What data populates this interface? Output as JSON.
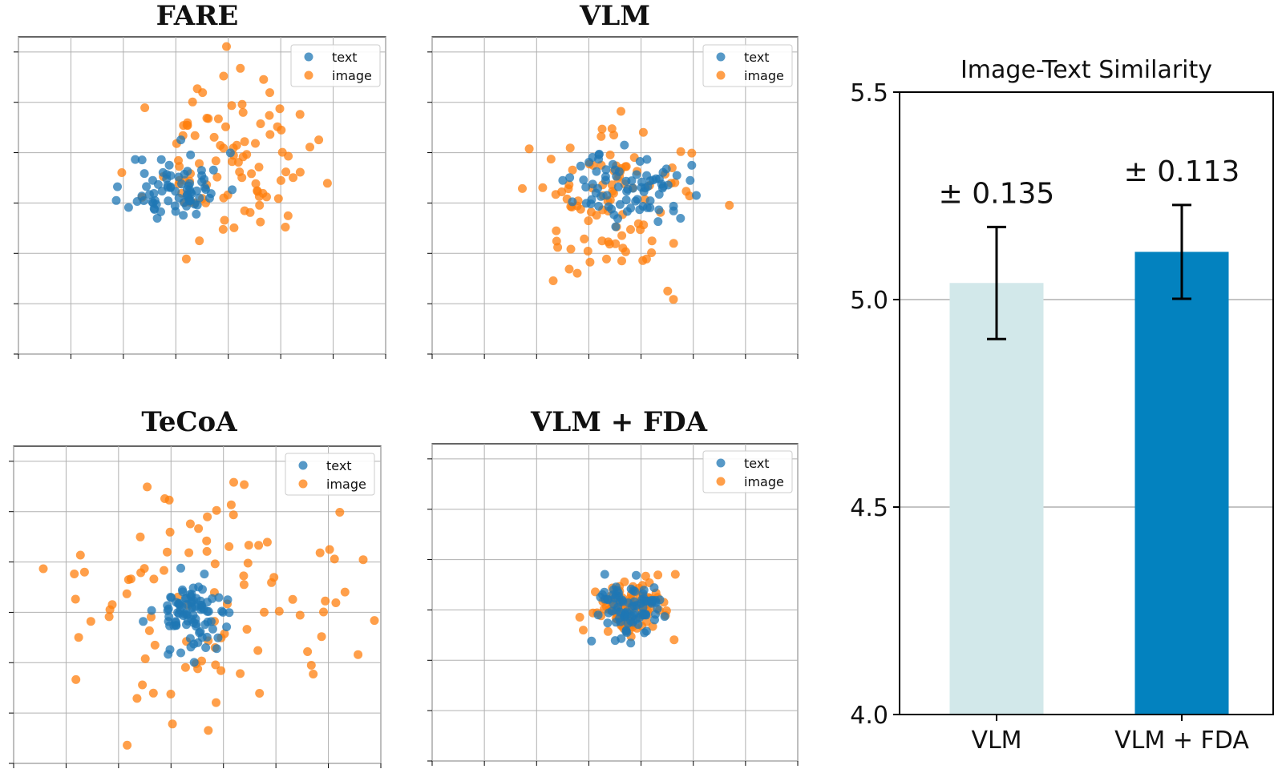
{
  "figure": {
    "scatter_titles": [
      "FARE",
      "VLM",
      "TeCoA",
      "VLM + FDA"
    ],
    "legend_labels": [
      "text",
      "image"
    ],
    "colors": {
      "text": "#1f77b4",
      "image": "#ff7f0e",
      "bar_vlm": "#d2e8ea",
      "bar_vlm_fda": "#0382bf"
    }
  },
  "chart_data": [
    {
      "type": "scatter",
      "title": "FARE",
      "xlim": [
        -4,
        3
      ],
      "ylim": [
        -3,
        3.3
      ],
      "series": [
        {
          "name": "text",
          "color": "#1f77b4",
          "center": [
            -1.0,
            0.3
          ],
          "spread": [
            0.45,
            0.35
          ],
          "count": 75,
          "seed": 11
        },
        {
          "name": "image",
          "color": "#ff7f0e",
          "center": [
            0.0,
            0.8
          ],
          "spread": [
            0.75,
            0.75
          ],
          "count": 95,
          "seed": 23
        }
      ]
    },
    {
      "type": "scatter",
      "title": "VLM",
      "xlim": [
        -4,
        3
      ],
      "ylim": [
        -3,
        3.3
      ],
      "series": [
        {
          "name": "text",
          "color": "#1f77b4",
          "center": [
            -0.2,
            0.3
          ],
          "spread": [
            0.55,
            0.35
          ],
          "count": 80,
          "seed": 37
        },
        {
          "name": "image",
          "color": "#ff7f0e",
          "center": [
            -0.4,
            0.0
          ],
          "spread": [
            0.8,
            0.75
          ],
          "count": 95,
          "seed": 41
        }
      ]
    },
    {
      "type": "scatter",
      "title": "TeCoA",
      "xlim": [
        -4,
        3
      ],
      "ylim": [
        -3,
        3.3
      ],
      "series": [
        {
          "name": "text",
          "color": "#1f77b4",
          "center": [
            -0.6,
            0.0
          ],
          "spread": [
            0.35,
            0.35
          ],
          "count": 90,
          "seed": 53
        },
        {
          "name": "image",
          "color": "#ff7f0e",
          "center": [
            -0.3,
            0.0
          ],
          "spread": [
            1.45,
            1.3
          ],
          "count": 100,
          "seed": 67
        }
      ]
    },
    {
      "type": "scatter",
      "title": "VLM + FDA",
      "xlim": [
        -4,
        3
      ],
      "ylim": [
        -3,
        3.3
      ],
      "series": [
        {
          "name": "text",
          "color": "#1f77b4",
          "center": [
            -0.2,
            0.0
          ],
          "spread": [
            0.35,
            0.3
          ],
          "count": 90,
          "seed": 71
        },
        {
          "name": "image",
          "color": "#ff7f0e",
          "center": [
            -0.2,
            0.0
          ],
          "spread": [
            0.35,
            0.28
          ],
          "count": 100,
          "seed": 83
        }
      ]
    },
    {
      "type": "bar",
      "title": "Image-Text Similarity",
      "categories": [
        "VLM",
        "VLM + FDA"
      ],
      "values": [
        5.04,
        5.115
      ],
      "errors": [
        0.135,
        0.113
      ],
      "error_labels": [
        "± 0.135",
        "± 0.113"
      ],
      "colors": [
        "#d2e8ea",
        "#0382bf"
      ],
      "ylim": [
        4.0,
        5.5
      ],
      "yticks": [
        "4.0",
        "4.5",
        "5.0",
        "5.5"
      ],
      "ytick_values": [
        4.0,
        4.5,
        5.0,
        5.5
      ],
      "grid": true
    }
  ]
}
